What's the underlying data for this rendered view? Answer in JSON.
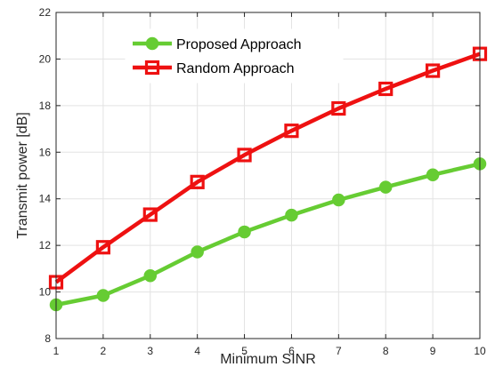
{
  "chart_data": {
    "type": "line",
    "title": "",
    "xlabel": "Minimum SINR",
    "ylabel": "Transmit power [dB]",
    "xlim": [
      1,
      10
    ],
    "ylim": [
      8,
      22
    ],
    "xticks": [
      1,
      2,
      3,
      4,
      5,
      6,
      7,
      8,
      9,
      10
    ],
    "yticks": [
      8,
      10,
      12,
      14,
      16,
      18,
      20,
      22
    ],
    "grid": true,
    "legend_position": "top-left",
    "x": [
      1,
      2,
      3,
      4,
      5,
      6,
      7,
      8,
      9,
      10
    ],
    "series": [
      {
        "name": "Proposed Approach",
        "color": "#66cc33",
        "marker": "circle",
        "values": [
          9.45,
          9.85,
          10.7,
          11.72,
          12.58,
          13.3,
          13.95,
          14.5,
          15.03,
          15.5
        ]
      },
      {
        "name": "Random Approach",
        "color": "#ee1111",
        "marker": "square",
        "values": [
          10.42,
          11.92,
          13.32,
          14.72,
          15.88,
          16.92,
          17.88,
          18.72,
          19.5,
          20.22
        ]
      }
    ]
  }
}
